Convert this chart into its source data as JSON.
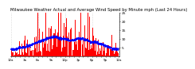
{
  "title": "Milwaukee Weather Actual and Average Wind Speed by Minute mph (Last 24 Hours)",
  "background_color": "#ffffff",
  "bar_color": "#ff0000",
  "avg_color": "#0000ff",
  "n_points": 1440,
  "seed": 42,
  "avg_base": [
    4,
    4,
    5,
    5,
    6,
    7,
    8,
    9,
    10,
    11,
    11,
    10,
    10,
    9,
    9,
    10,
    10,
    9,
    8,
    8,
    7,
    6,
    5,
    4,
    4
  ],
  "title_fontsize": 3.8,
  "tick_fontsize": 3.2,
  "grid_color": "#bbbbbb",
  "avg_linewidth": 0.6,
  "bar_width": 1.0,
  "ylim": [
    0,
    25
  ],
  "ytick_vals": [
    5,
    10,
    15,
    20,
    25
  ],
  "n_hours": 24
}
